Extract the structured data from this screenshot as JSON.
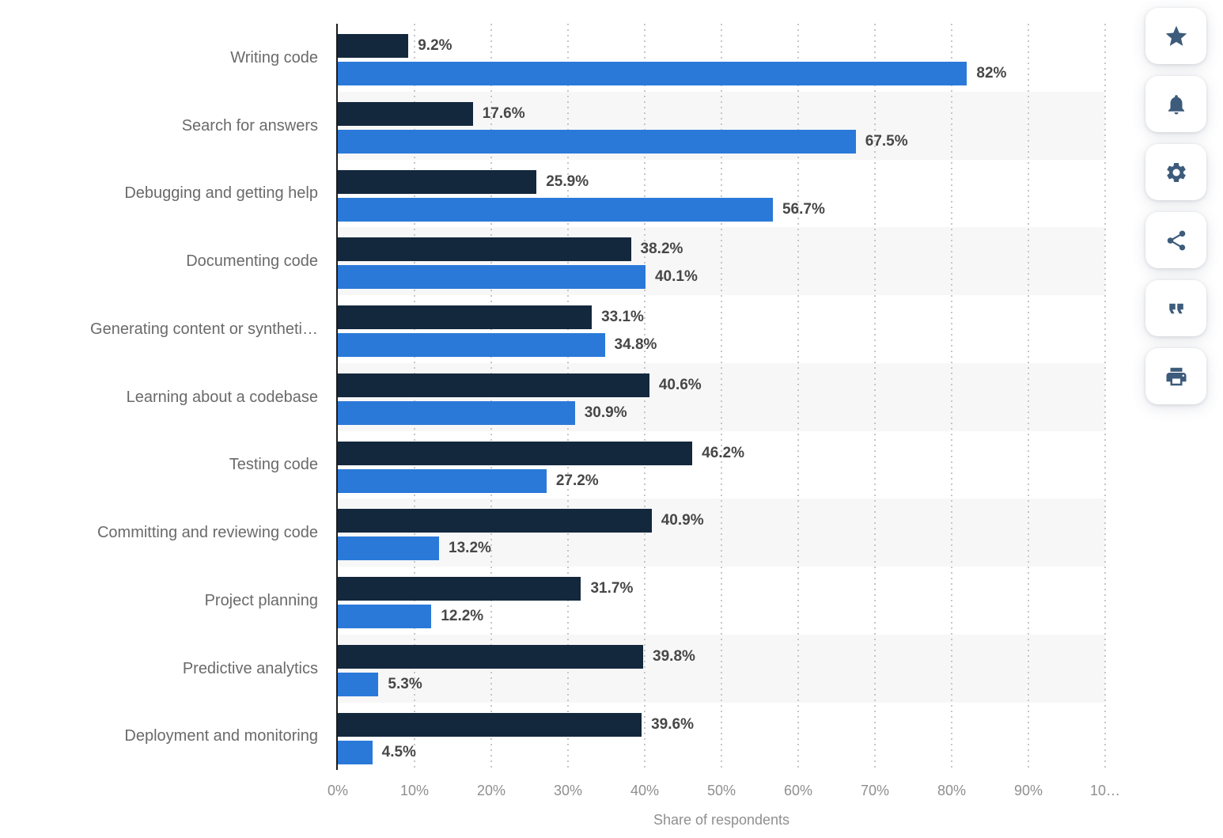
{
  "chart_data": {
    "type": "bar",
    "orientation": "horizontal",
    "categories": [
      "Writing code",
      "Search for answers",
      "Debugging and getting help",
      "Documenting code",
      "Generating content or syntheti…",
      "Learning about a codebase",
      "Testing code",
      "Committing and reviewing code",
      "Project planning",
      "Predictive analytics",
      "Deployment and monitoring"
    ],
    "series": [
      {
        "id": "dark-navy",
        "color": "#13283d",
        "values": [
          9.2,
          17.6,
          25.9,
          38.2,
          33.1,
          40.6,
          46.2,
          40.9,
          31.7,
          39.8,
          39.6
        ],
        "labels": [
          "9.2%",
          "17.6%",
          "25.9%",
          "38.2%",
          "33.1%",
          "40.6%",
          "46.2%",
          "40.9%",
          "31.7%",
          "39.8%",
          "39.6%"
        ]
      },
      {
        "id": "blue",
        "color": "#2a79d9",
        "values": [
          82,
          67.5,
          56.7,
          40.1,
          34.8,
          30.9,
          27.2,
          13.2,
          12.2,
          5.3,
          4.5
        ],
        "labels": [
          "82%",
          "67.5%",
          "56.7%",
          "40.1%",
          "34.8%",
          "30.9%",
          "27.2%",
          "13.2%",
          "12.2%",
          "5.3%",
          "4.5%"
        ]
      }
    ],
    "xlabel": "Share of respondents",
    "x_ticks": [
      "0%",
      "10%",
      "20%",
      "30%",
      "40%",
      "50%",
      "60%",
      "70%",
      "80%",
      "90%",
      "10…"
    ],
    "xlim": [
      0,
      100
    ],
    "grid": "dotted-vertical",
    "row_striping": [
      "#ffffff",
      "#f7f7f8"
    ],
    "legend": "none"
  },
  "toolbar": {
    "buttons": [
      {
        "name": "favorite",
        "icon": "star-icon"
      },
      {
        "name": "notifications",
        "icon": "bell-icon"
      },
      {
        "name": "settings",
        "icon": "gear-icon"
      },
      {
        "name": "share",
        "icon": "share-icon"
      },
      {
        "name": "cite",
        "icon": "quote-icon"
      },
      {
        "name": "print",
        "icon": "printer-icon"
      }
    ],
    "icon_color": "#3d5b7b"
  }
}
